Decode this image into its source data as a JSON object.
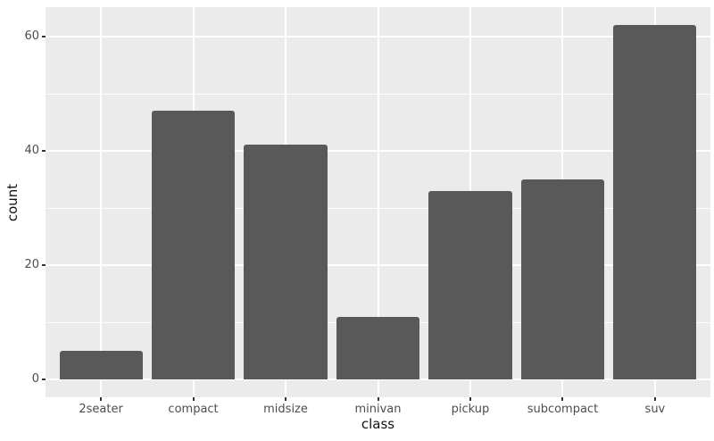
{
  "chart_data": {
    "type": "bar",
    "title": "",
    "categories": [
      "2seater",
      "compact",
      "midsize",
      "minivan",
      "pickup",
      "subcompact",
      "suv"
    ],
    "values": [
      5,
      47,
      41,
      11,
      33,
      35,
      62
    ],
    "xlabel": "class",
    "ylabel": "count",
    "yticks": [
      0,
      20,
      40,
      60
    ],
    "yminor_ticks": [
      10,
      30,
      50
    ],
    "ylim": [
      -3.1,
      65.1
    ],
    "bar_width_ratio": 0.9,
    "x_expand": 0.6,
    "grid": "on",
    "legend": "none",
    "colors": {
      "bar_fill": "#595959",
      "panel_background": "#EBEBEB",
      "grid_major": "#FFFFFF",
      "grid_minor": "#FFFFFF",
      "tick_label": "#4D4D4D",
      "axis_title": "#111111",
      "tick_mark": "#333333",
      "background": "#FFFFFF"
    }
  }
}
